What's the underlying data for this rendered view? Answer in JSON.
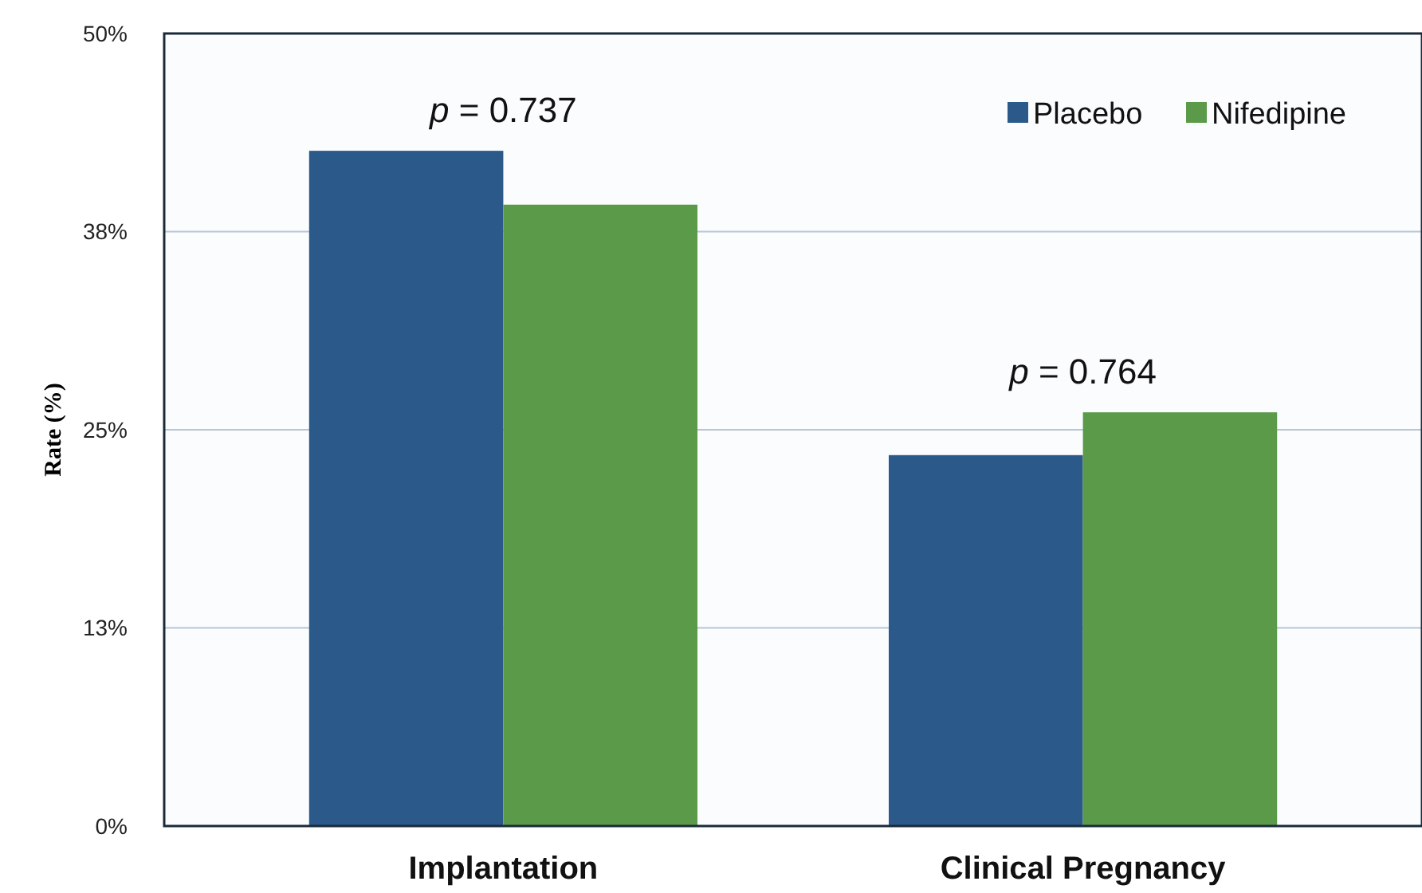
{
  "chart_data": {
    "type": "bar",
    "ylabel": "Rate (%)",
    "categories": [
      "Implantation",
      "Clinical Pregnancy"
    ],
    "series": [
      {
        "name": "Placebo",
        "color": "#2b5a8a",
        "values": [
          42.6,
          23.4
        ]
      },
      {
        "name": "Nifedipine",
        "color": "#5b9a48",
        "values": [
          39.2,
          26.1
        ]
      }
    ],
    "ylim": [
      0,
      50
    ],
    "yticks": [
      {
        "value": 0,
        "label": "0%"
      },
      {
        "value": 12.5,
        "label": "13%"
      },
      {
        "value": 25,
        "label": "25%"
      },
      {
        "value": 37.5,
        "label": "38%"
      },
      {
        "value": 50,
        "label": "50%"
      }
    ],
    "grid": "y",
    "legend": "top right",
    "annotations": [
      "p = 0.737",
      "p = 0.764"
    ]
  }
}
